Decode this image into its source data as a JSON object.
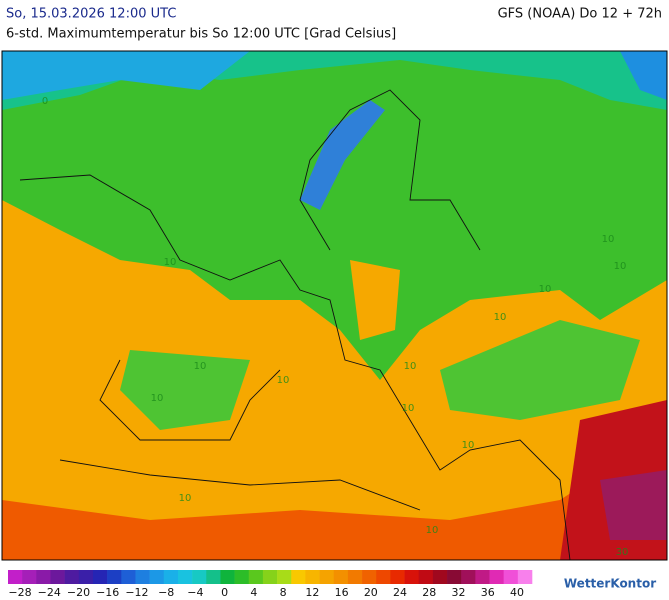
{
  "header": {
    "date": "So, 15.03.2026 12:00 UTC",
    "model": "GFS (NOAA) Do 12 + 72h",
    "subtitle": "6-std. Maximumtemperatur bis So 12:00 UTC [Grad Celsius]"
  },
  "map": {
    "contour_labels": [
      "0",
      "10",
      "10",
      "10",
      "10",
      "10",
      "10",
      "10",
      "10",
      "10",
      "10",
      "10",
      "10",
      "10",
      "30"
    ]
  },
  "legend": {
    "labels": [
      "−28",
      "−24",
      "−20",
      "−16",
      "−12",
      "−8",
      "−4",
      "0",
      "4",
      "8",
      "12",
      "16",
      "20",
      "24",
      "28",
      "32",
      "36",
      "40"
    ],
    "colors": [
      "#c21fc9",
      "#a51fb8",
      "#8a1aa8",
      "#6c189c",
      "#4e1ba0",
      "#3a1fa8",
      "#2525b4",
      "#1c3fc4",
      "#1e5fd6",
      "#1e7fe0",
      "#1c98e6",
      "#1ab0e8",
      "#19c2e0",
      "#17c9c4",
      "#14c08a",
      "#0fb43c",
      "#2cbd28",
      "#5ac81e",
      "#86d21a",
      "#a8dc18",
      "#f9c800",
      "#f7b500",
      "#f5a300",
      "#f39000",
      "#f27a00",
      "#f06200",
      "#ee4800",
      "#e82a00",
      "#d8120a",
      "#c00a14",
      "#a0081e",
      "#880a34",
      "#a0105a",
      "#c01a86",
      "#e02ab4",
      "#f050d8",
      "#f880ec"
    ]
  },
  "logo": "WetterKontor"
}
